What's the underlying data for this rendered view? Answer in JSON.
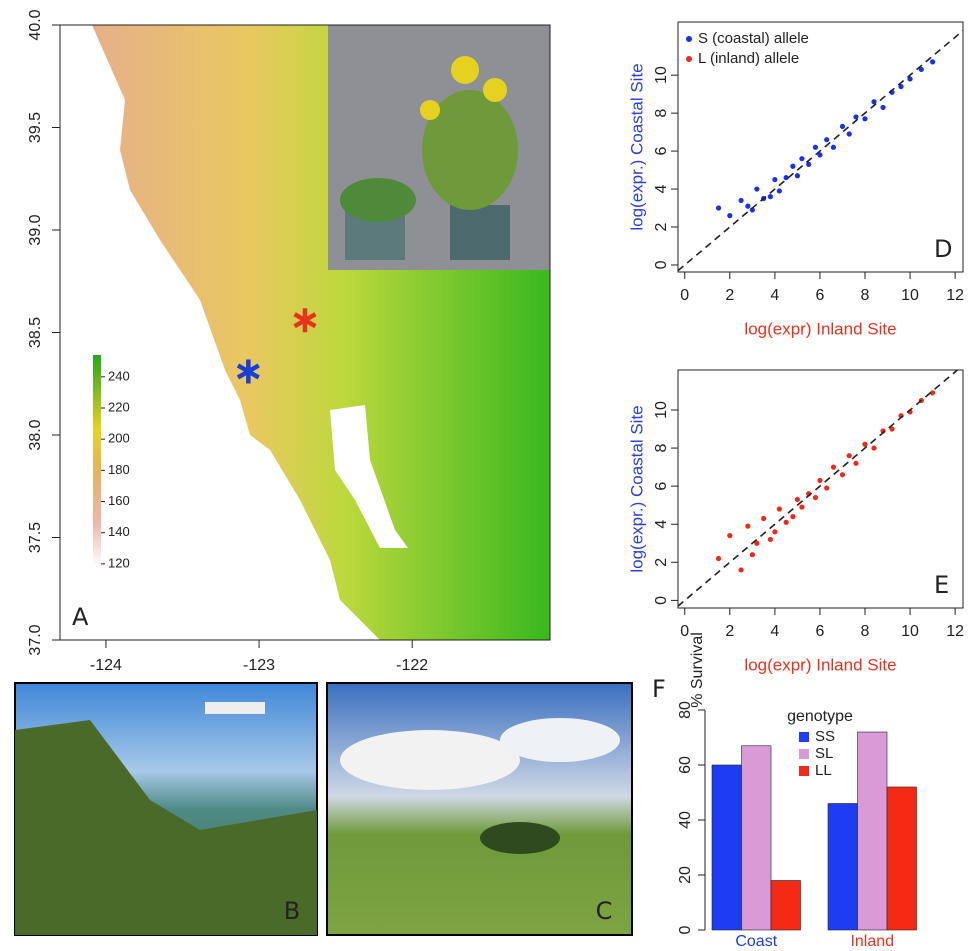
{
  "chart_data": [
    {
      "type": "map",
      "panel_label": "A",
      "xlim": [
        -124.3,
        -121.1
      ],
      "ylim": [
        37.0,
        40.0
      ],
      "xticks": [
        -124,
        -123,
        -122
      ],
      "yticks": [
        {
          "value": 37.0,
          "label": "37.0"
        },
        {
          "value": 37.5,
          "label": "37.5"
        },
        {
          "value": 38.0,
          "label": "38.0"
        },
        {
          "value": 38.5,
          "label": "38.5"
        },
        {
          "value": 39.0,
          "label": "39.0"
        },
        {
          "value": 39.5,
          "label": "39.5"
        },
        {
          "value": 40.0,
          "label": "40.0"
        }
      ],
      "colorbar": {
        "lim": [
          118,
          254
        ],
        "ticks": [
          120,
          140,
          160,
          180,
          200,
          220,
          240
        ]
      },
      "markers": [
        {
          "x": -123.07,
          "y": 38.31,
          "color": "#1a3fd9"
        },
        {
          "x": -122.7,
          "y": 38.56,
          "color": "#e8321e"
        }
      ]
    },
    {
      "type": "scatter",
      "panel_label": "D",
      "x_label": "log(expr) Inland Site",
      "y_label": "log(expr.) Coastal Site",
      "xlim": [
        -0.3,
        12.35
      ],
      "ylim": [
        -0.37,
        12.8
      ],
      "xticks": [
        0,
        2,
        4,
        6,
        8,
        10,
        12
      ],
      "yticks": [
        0,
        2,
        4,
        6,
        8,
        10
      ],
      "legend": [
        {
          "label": "S (coastal) allele",
          "color": "#1a2ff0"
        },
        {
          "label": "L (inland) allele",
          "color": "#f0281a"
        }
      ],
      "color": "#1a2ff0",
      "x": [
        1.5,
        2.0,
        2.5,
        2.8,
        3.0,
        3.2,
        3.5,
        3.8,
        4.0,
        4.2,
        4.5,
        4.8,
        5.0,
        5.2,
        5.5,
        5.8,
        6.0,
        6.3,
        6.6,
        7.0,
        7.3,
        7.6,
        8.0,
        8.4,
        8.8,
        9.2,
        9.6,
        10.0,
        10.5,
        11.0
      ],
      "values": [
        3.0,
        2.6,
        3.4,
        3.1,
        2.9,
        4.0,
        3.5,
        3.6,
        4.5,
        3.9,
        4.6,
        5.2,
        4.7,
        5.6,
        5.3,
        6.2,
        5.8,
        6.6,
        6.2,
        7.3,
        6.9,
        7.8,
        7.7,
        8.6,
        8.3,
        9.1,
        9.4,
        9.8,
        10.3,
        10.7
      ]
    },
    {
      "type": "scatter",
      "panel_label": "E",
      "x_label": "log(expr) Inland Site",
      "y_label": "log(expr.) Coastal Site",
      "xlim": [
        -0.3,
        12.35
      ],
      "ylim": [
        -0.4,
        12.1
      ],
      "xticks": [
        0,
        2,
        4,
        6,
        8,
        10,
        12
      ],
      "yticks": [
        0,
        2,
        4,
        6,
        8,
        10
      ],
      "color": "#f0281a",
      "x": [
        1.5,
        2.0,
        2.5,
        2.8,
        3.0,
        3.2,
        3.5,
        3.8,
        4.0,
        4.2,
        4.5,
        4.8,
        5.0,
        5.2,
        5.5,
        5.8,
        6.0,
        6.3,
        6.6,
        7.0,
        7.3,
        7.6,
        8.0,
        8.4,
        8.8,
        9.2,
        9.6,
        10.0,
        10.5,
        11.0
      ],
      "values": [
        2.2,
        3.4,
        1.6,
        3.9,
        2.4,
        3.0,
        4.3,
        3.2,
        3.6,
        4.8,
        4.1,
        4.4,
        5.3,
        4.9,
        5.6,
        5.4,
        6.3,
        5.9,
        7.0,
        6.6,
        7.6,
        7.2,
        8.2,
        8.0,
        8.9,
        9.0,
        9.7,
        9.9,
        10.5,
        10.9
      ]
    },
    {
      "type": "bar",
      "panel_label": "F",
      "y_label": "% Survival",
      "legend_title": "genotype",
      "categories": [
        "Coast",
        "Inland"
      ],
      "category_colors": [
        "#1a3fd9",
        "#e8321e"
      ],
      "ylim": [
        0,
        80
      ],
      "yticks": [
        0,
        20,
        40,
        60,
        80
      ],
      "series": [
        {
          "name": "SS",
          "color": "#1f3cf5",
          "values": [
            60,
            46
          ]
        },
        {
          "name": "SL",
          "color": "#d99ad6",
          "values": [
            67,
            72
          ]
        },
        {
          "name": "LL",
          "color": "#f52a14",
          "values": [
            18,
            52
          ]
        }
      ]
    }
  ],
  "photos": [
    {
      "panel_label": "B"
    },
    {
      "panel_label": "C"
    }
  ]
}
